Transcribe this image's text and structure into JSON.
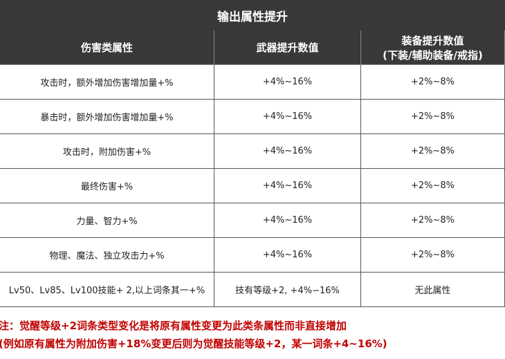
{
  "title": "输出属性提升",
  "table": {
    "headers": [
      "伤害类属性",
      "武器提升数值",
      "装备提升数值"
    ],
    "header_sub": "(下装/辅助装备/戒指)",
    "rows": [
      [
        "攻击时，额外增加伤害增加量+%",
        "+4%~16%",
        "+2%~8%"
      ],
      [
        "暴击时，额外增加伤害增加量+%",
        "+4%~16%",
        "+2%~8%"
      ],
      [
        "攻击时，附加伤害+%",
        "+4%~16%",
        "+2%~8%"
      ],
      [
        "最终伤害+%",
        "+4%~16%",
        "+2%~8%"
      ],
      [
        "力量、智力+%",
        "+4%~16%",
        "+2%~8%"
      ],
      [
        "物理、魔法、独立攻击力+%",
        "+4%~16%",
        "+2%~8%"
      ],
      [
        "Lv50、Lv85、Lv100技能+ 2,以上词条其一+%",
        "技有等级+2, +4%∽16%",
        "无此属性"
      ]
    ]
  },
  "notes": [
    "注：觉醒等级+2词条类型变化是将原有属性变更为此类条属性而非直接增加",
    "(例如原有属性为附加伤害+18%变更后则为觉醒技能等级+2，某一词条+4~16%)"
  ]
}
